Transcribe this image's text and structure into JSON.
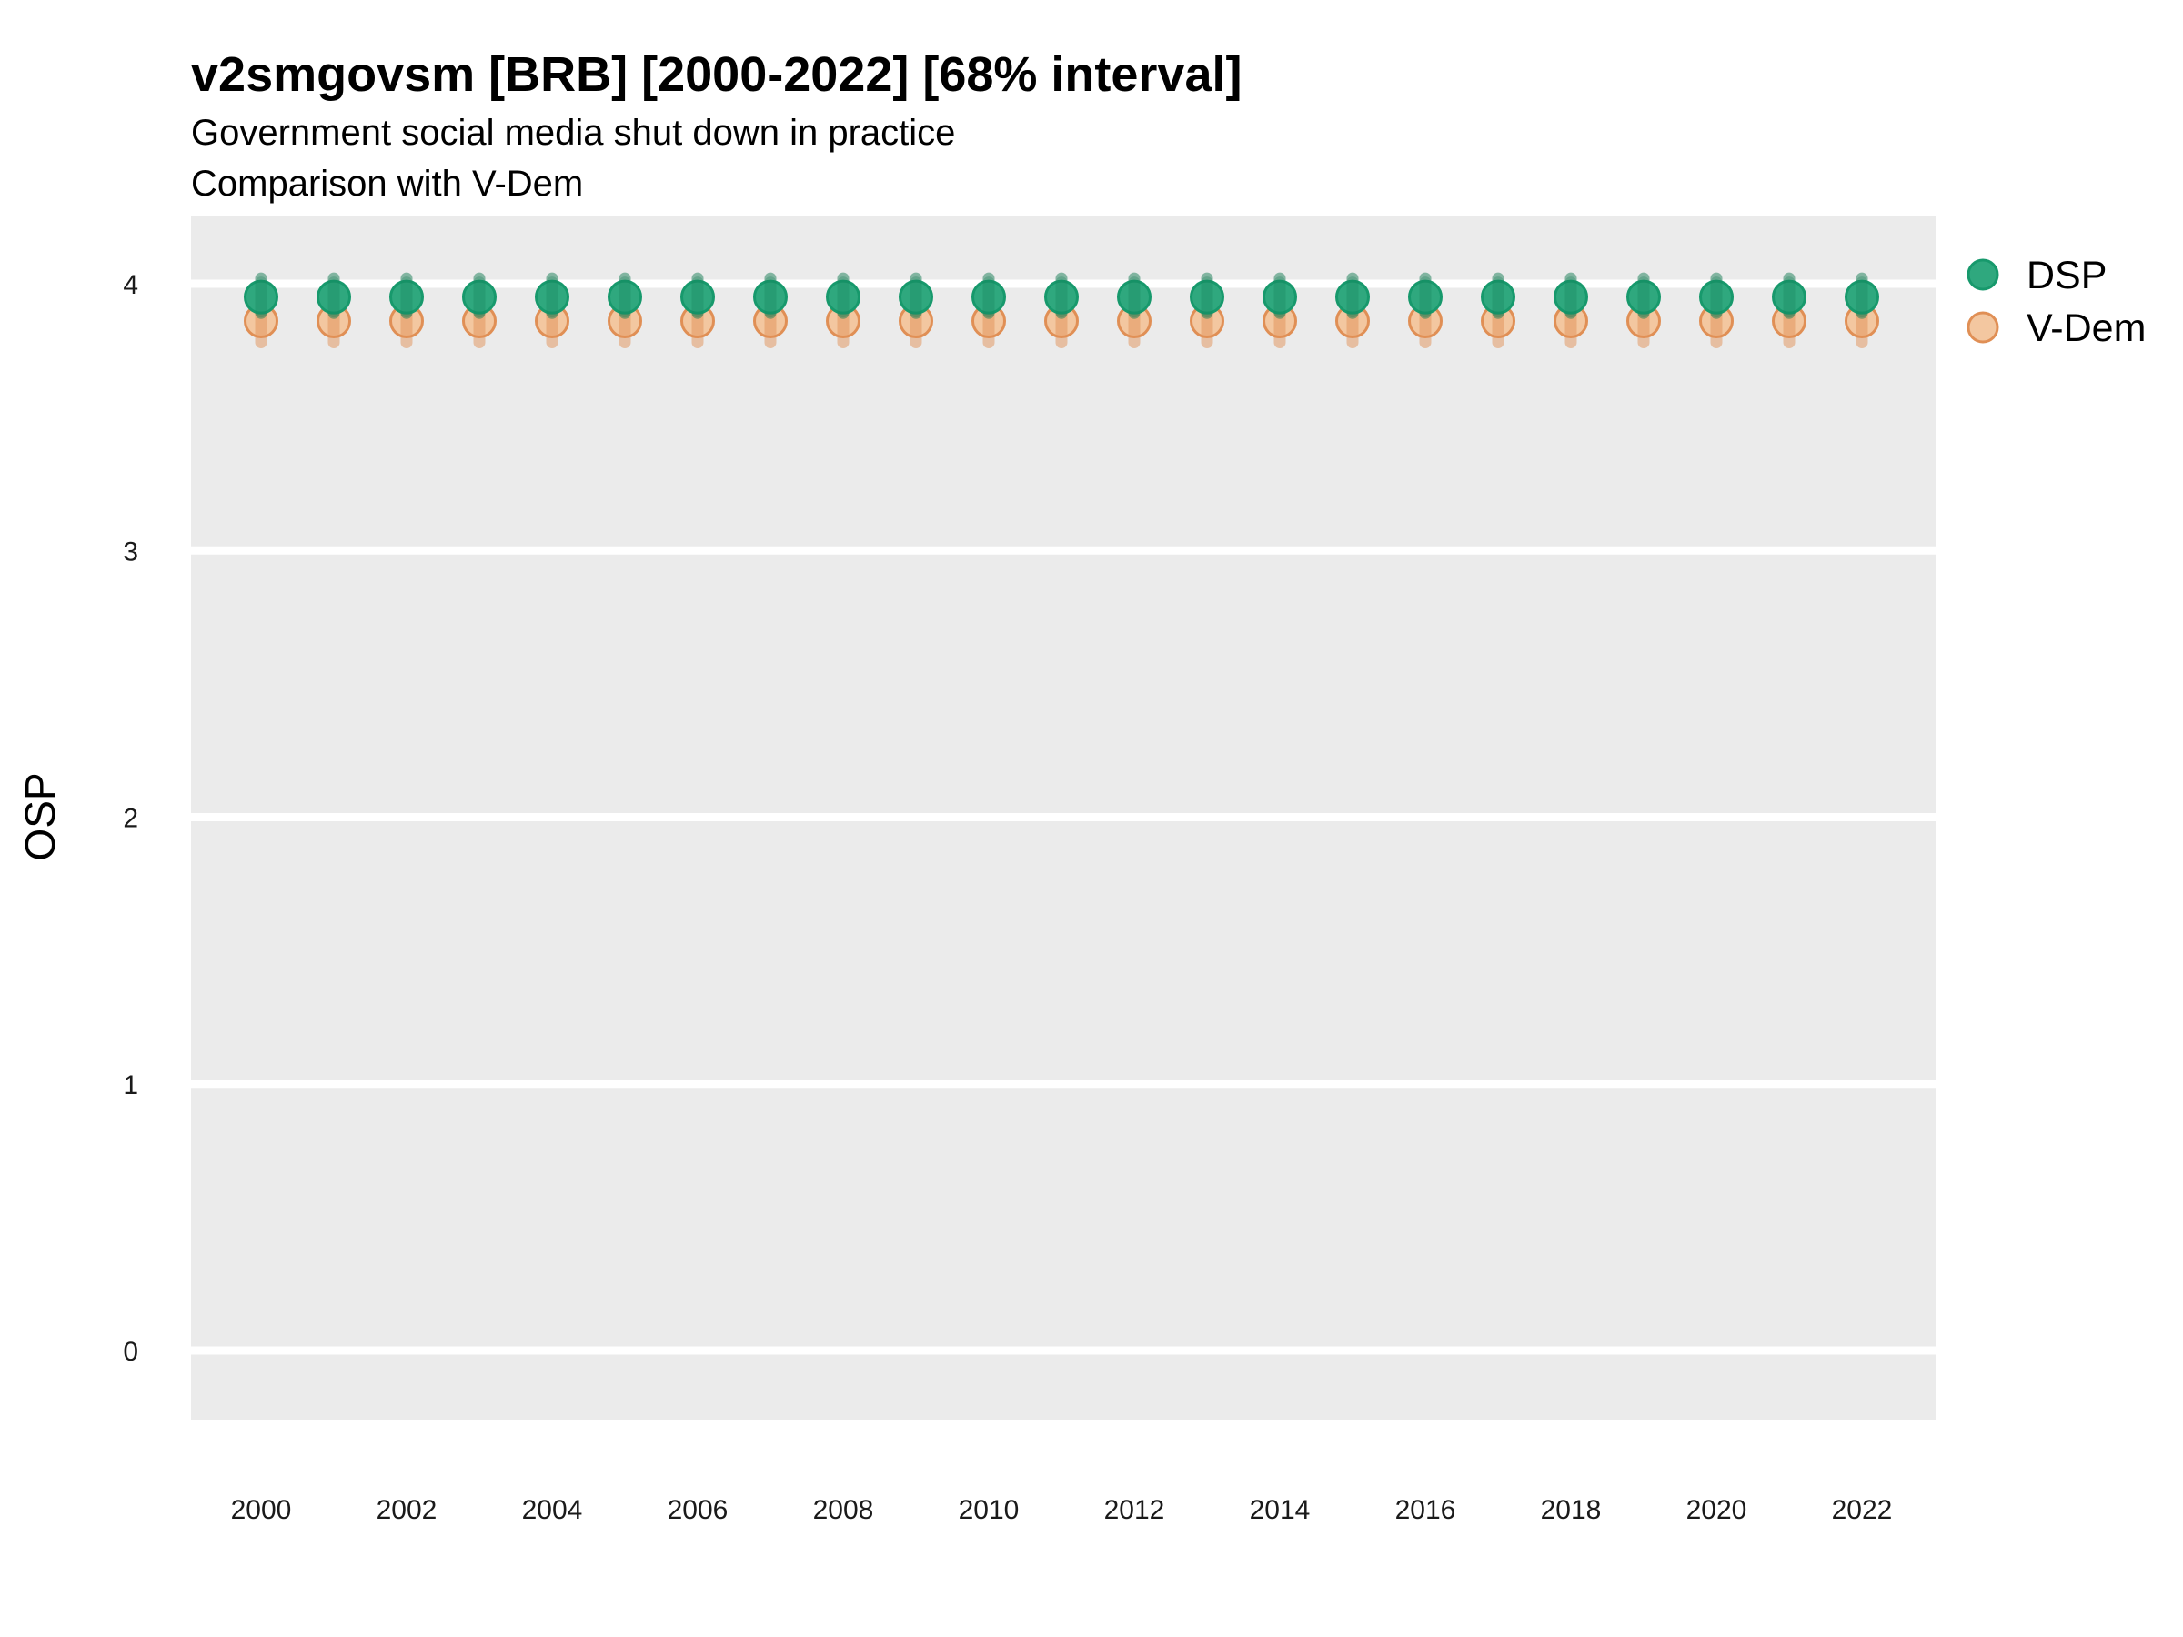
{
  "header": {
    "title": "v2smgovsm [BRB] [2000-2022] [68% interval]",
    "subtitle1": "Government social media shut down in practice",
    "subtitle2": "Comparison with V-Dem"
  },
  "axes": {
    "y_label": "OSP",
    "y_tick_labels": [
      "4",
      "3",
      "2",
      "1",
      "0"
    ],
    "x_tick_labels": [
      "2000",
      "2002",
      "2004",
      "2006",
      "2008",
      "2010",
      "2012",
      "2014",
      "2016",
      "2018",
      "2020",
      "2022"
    ]
  },
  "legend": {
    "entries": [
      {
        "label": "DSP"
      },
      {
        "label": "V-Dem"
      }
    ]
  },
  "colors": {
    "panel_background": "#EBEBEB",
    "gridline": "#FFFFFF",
    "dsp_fill": "#2FA87E",
    "dsp_stroke": "#17996C",
    "dsp_bar": "rgba(23,125,85,0.5)",
    "vdem_fill": "#F3C7A0",
    "vdem_stroke": "#E08F55",
    "vdem_bar": "rgba(226,146,88,0.5)"
  },
  "chart_data": {
    "type": "pointrange",
    "title": "v2smgovsm [BRB] [2000-2022] [68% interval]",
    "subtitle": "Government social media shut down in practice",
    "subtitle2": "Comparison with V-Dem",
    "xlabel": "",
    "ylabel": "OSP",
    "x": [
      2000,
      2001,
      2002,
      2003,
      2004,
      2005,
      2006,
      2007,
      2008,
      2009,
      2010,
      2011,
      2012,
      2013,
      2014,
      2015,
      2016,
      2017,
      2018,
      2019,
      2020,
      2021,
      2022
    ],
    "x_ticks": [
      2000,
      2002,
      2004,
      2006,
      2008,
      2010,
      2012,
      2014,
      2016,
      2018,
      2020,
      2022
    ],
    "y_ticks": [
      0,
      1,
      2,
      3,
      4
    ],
    "ylim": [
      -0.26,
      4.26
    ],
    "grid": "horizontal gridlines only, white on gray panel",
    "legend_position": "top-right outside panel",
    "interval": "68%",
    "series": [
      {
        "name": "DSP",
        "values": [
          3.95,
          3.95,
          3.95,
          3.95,
          3.95,
          3.95,
          3.95,
          3.95,
          3.95,
          3.95,
          3.95,
          3.95,
          3.95,
          3.95,
          3.95,
          3.95,
          3.95,
          3.95,
          3.95,
          3.95,
          3.95,
          3.95,
          3.95
        ],
        "lower": [
          3.89,
          3.89,
          3.89,
          3.89,
          3.89,
          3.89,
          3.89,
          3.89,
          3.89,
          3.89,
          3.89,
          3.89,
          3.89,
          3.89,
          3.89,
          3.89,
          3.89,
          3.89,
          3.89,
          3.89,
          3.89,
          3.89,
          3.89
        ],
        "upper": [
          4.02,
          4.02,
          4.02,
          4.02,
          4.02,
          4.02,
          4.02,
          4.02,
          4.02,
          4.02,
          4.02,
          4.02,
          4.02,
          4.02,
          4.02,
          4.02,
          4.02,
          4.02,
          4.02,
          4.02,
          4.02,
          4.02,
          4.02
        ]
      },
      {
        "name": "V-Dem",
        "values": [
          3.86,
          3.86,
          3.86,
          3.86,
          3.86,
          3.86,
          3.86,
          3.86,
          3.86,
          3.86,
          3.86,
          3.86,
          3.86,
          3.86,
          3.86,
          3.86,
          3.86,
          3.86,
          3.86,
          3.86,
          3.86,
          3.86,
          3.86
        ],
        "lower": [
          3.78,
          3.78,
          3.78,
          3.78,
          3.78,
          3.78,
          3.78,
          3.78,
          3.78,
          3.78,
          3.78,
          3.78,
          3.78,
          3.78,
          3.78,
          3.78,
          3.78,
          3.78,
          3.78,
          3.78,
          3.78,
          3.78,
          3.78
        ],
        "upper": [
          3.92,
          3.92,
          3.92,
          3.92,
          3.92,
          3.92,
          3.92,
          3.92,
          3.92,
          3.92,
          3.92,
          3.92,
          3.92,
          3.92,
          3.92,
          3.92,
          3.92,
          3.92,
          3.92,
          3.92,
          3.92,
          3.92,
          3.92
        ]
      }
    ]
  }
}
